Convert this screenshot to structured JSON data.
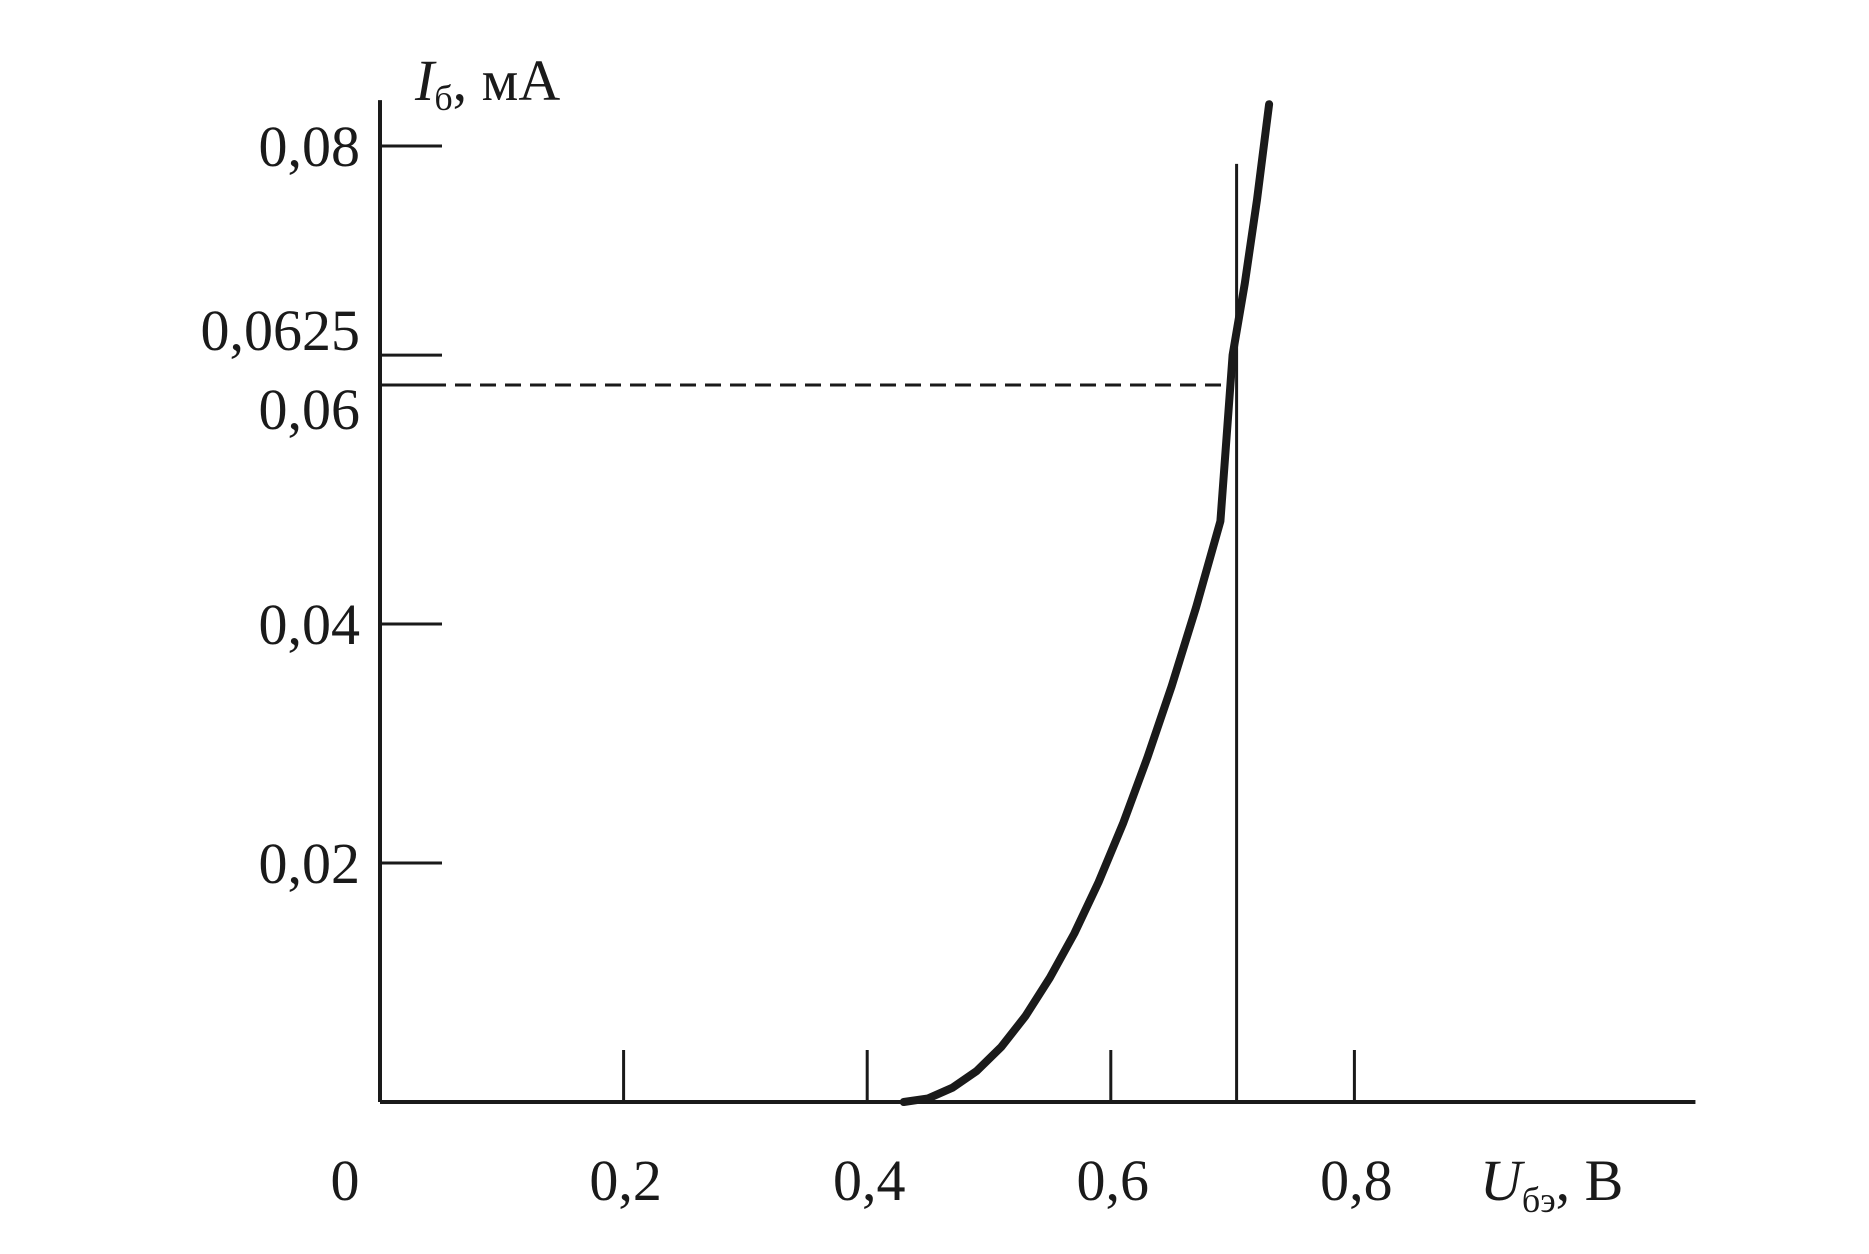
{
  "chart_data": {
    "type": "line",
    "x_axis": {
      "symbol": "U",
      "subscript": "бэ",
      "unit": ", В",
      "ticks": [
        0.2,
        0.4,
        0.6,
        0.8
      ],
      "tick_labels": [
        "0,2",
        "0,4",
        "0,6",
        "0,8"
      ],
      "range": [
        0,
        1.08
      ]
    },
    "y_axis": {
      "symbol": "I",
      "subscript": "б",
      "unit": ",  мА",
      "ticks": [
        0.02,
        0.04,
        0.06,
        0.0625,
        0.08
      ],
      "tick_labels": [
        "0,02",
        "0,04",
        "0,06",
        "0,0625",
        "0,08"
      ],
      "range": [
        0,
        0.0835
      ]
    },
    "origin_label": "0",
    "grid": false,
    "series": [
      {
        "x": [
          0.43,
          0.45,
          0.47,
          0.49,
          0.51,
          0.53,
          0.55,
          0.57,
          0.59,
          0.61,
          0.63,
          0.65,
          0.67,
          0.69,
          0.7,
          0.71,
          0.72,
          0.73
        ],
        "y": [
          0.0,
          0.0003,
          0.0012,
          0.0026,
          0.0046,
          0.0072,
          0.0104,
          0.0141,
          0.0184,
          0.0233,
          0.0288,
          0.0348,
          0.0414,
          0.0486,
          0.0625,
          0.0685,
          0.0755,
          0.0835
        ]
      }
    ],
    "annotations": [
      {
        "type": "vertical-line",
        "x": 0.7,
        "y_to": 0.0785
      },
      {
        "type": "horizontal-dashed-line",
        "y": 0.06,
        "x_from": 0,
        "x_to": 0.7
      }
    ]
  }
}
